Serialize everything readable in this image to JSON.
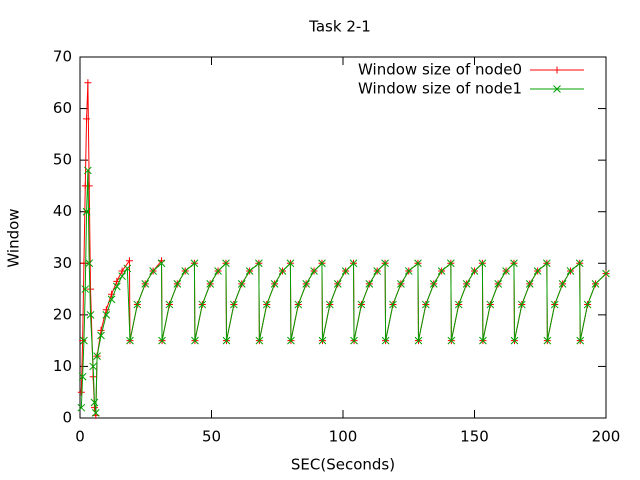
{
  "chart_data": {
    "type": "line",
    "title": "Task 2-1",
    "x_label": "SEC(Seconds)",
    "y_label": "Window",
    "xlim": [
      0,
      200
    ],
    "xticks": [
      0,
      50,
      100,
      150,
      200
    ],
    "ylim": [
      0,
      70
    ],
    "yticks": [
      0,
      10,
      20,
      30,
      40,
      50,
      60,
      70
    ],
    "legend": "top-right",
    "series": [
      {
        "name": "Window size of node0",
        "color": "#ff0000",
        "marker": "plus",
        "x": [
          0.5,
          1,
          1.5,
          2,
          2.5,
          3,
          3.5,
          4,
          5,
          5.5,
          6,
          6.5,
          8,
          10,
          12,
          14,
          16,
          18.8,
          19,
          21.8,
          24.8,
          27.8,
          31,
          31.2,
          34,
          37,
          40,
          43.5,
          43.7,
          46.5,
          49.5,
          52.5,
          55.5,
          55.7,
          58.5,
          61.5,
          64.5,
          68,
          68.2,
          71,
          74,
          77,
          80,
          80.2,
          83,
          86,
          89,
          92,
          92.2,
          95,
          98,
          101,
          104,
          104.2,
          107,
          110,
          113,
          116,
          116.2,
          119,
          122,
          125,
          128.5,
          128.7,
          131.5,
          134.5,
          137.5,
          141,
          141.2,
          144,
          147,
          150,
          153,
          153.2,
          156,
          159,
          162,
          165,
          165.2,
          168,
          171,
          174,
          177.5,
          177.7,
          180.5,
          183.5,
          186.5,
          190,
          190.2,
          193,
          196,
          200
        ],
        "values": [
          5,
          15,
          30,
          45,
          58,
          65,
          45,
          25,
          8,
          2,
          0.5,
          12,
          17,
          21,
          24,
          26.5,
          28.5,
          30.5,
          15,
          22,
          26,
          28.5,
          30.5,
          15,
          22,
          26,
          28.5,
          30,
          15,
          22,
          26,
          28.5,
          30,
          15,
          22,
          26,
          28.5,
          30,
          15,
          22,
          26,
          28.5,
          30,
          15,
          22,
          26,
          28.5,
          30,
          15,
          22,
          26,
          28.5,
          30,
          15,
          22,
          26,
          28.5,
          30,
          15,
          22,
          26,
          28.5,
          30,
          15,
          22,
          26,
          28.5,
          30,
          15,
          22,
          26,
          28.5,
          30,
          15,
          22,
          26,
          28.5,
          30,
          15,
          22,
          26,
          28.5,
          30,
          15,
          22,
          26,
          28.5,
          30,
          15,
          22,
          26,
          28
        ]
      },
      {
        "name": "Window size of node1",
        "color": "#00a000",
        "marker": "cross",
        "x": [
          0.5,
          1,
          1.5,
          2,
          2.5,
          3,
          3.5,
          4,
          5,
          5.5,
          6,
          6.5,
          8,
          10,
          12,
          14,
          16,
          18,
          19,
          21.8,
          24.8,
          27.8,
          31,
          31.2,
          34,
          37,
          40,
          43.5,
          43.7,
          46.5,
          49.5,
          52.5,
          55.5,
          55.7,
          58.5,
          61.5,
          64.5,
          68,
          68.2,
          71,
          74,
          77,
          80,
          80.2,
          83,
          86,
          89,
          92,
          92.2,
          95,
          98,
          101,
          104,
          104.2,
          107,
          110,
          113,
          116,
          116.2,
          119,
          122,
          125,
          128.5,
          128.7,
          131.5,
          134.5,
          137.5,
          141,
          141.2,
          144,
          147,
          150,
          153,
          153.2,
          156,
          159,
          162,
          165,
          165.2,
          168,
          171,
          174,
          177.5,
          177.7,
          180.5,
          183.5,
          186.5,
          190,
          190.2,
          193,
          196,
          200
        ],
        "values": [
          2,
          8,
          15,
          25,
          40,
          48,
          30,
          20,
          10,
          3,
          1,
          12,
          16,
          20,
          23,
          25.5,
          27.5,
          29,
          15,
          22,
          26,
          28.5,
          30,
          15,
          22,
          26,
          28.5,
          30,
          15,
          22,
          26,
          28.5,
          30,
          15,
          22,
          26,
          28.5,
          30,
          15,
          22,
          26,
          28.5,
          30,
          15,
          22,
          26,
          28.5,
          30,
          15,
          22,
          26,
          28.5,
          30,
          15,
          22,
          26,
          28.5,
          30,
          15,
          22,
          26,
          28.5,
          30,
          15,
          22,
          26,
          28.5,
          30,
          15,
          22,
          26,
          28.5,
          30,
          15,
          22,
          26,
          28.5,
          30,
          15,
          22,
          26,
          28.5,
          30,
          15,
          22,
          26,
          28.5,
          30,
          15,
          22,
          26,
          28
        ]
      }
    ]
  }
}
